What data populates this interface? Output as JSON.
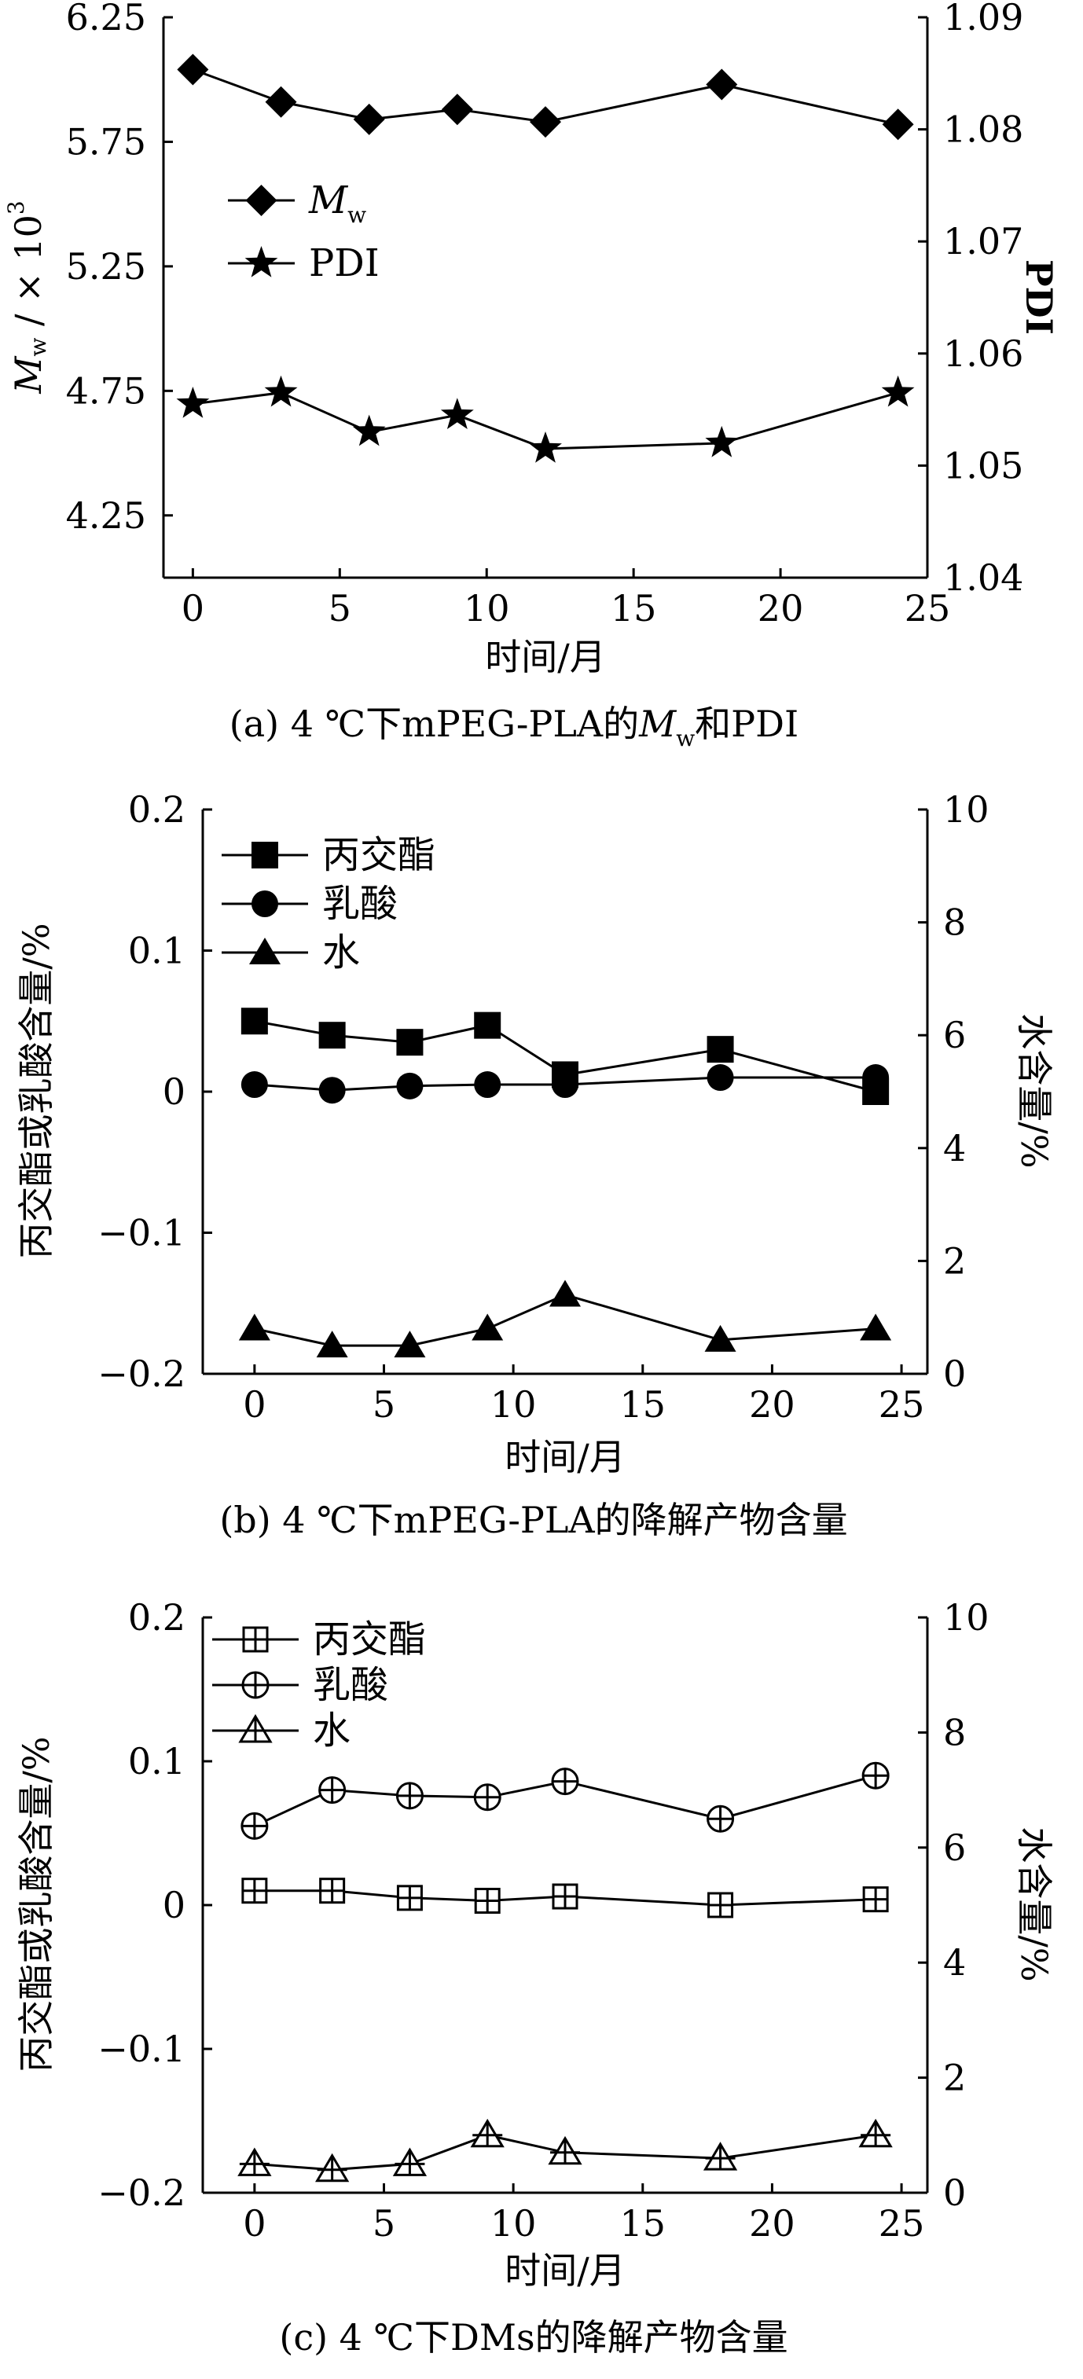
{
  "chart_data": [
    {
      "type": "line",
      "caption": "(a) 4 ℃下mPEG-PLA的M_w和PDI",
      "caption_parts": {
        "pre": "(a) 4 ℃下mPEG-PLA的",
        "var": "M",
        "sub": "w",
        "post": "和PDI"
      },
      "xlabel": "时间/月",
      "ylabel_left": "M_w / × 10^3",
      "ylabel_left_parts": {
        "var": "M",
        "sub": "w",
        "rest": " / × 10",
        "sup": "3"
      },
      "ylabel_right": "PDI",
      "xlim": [
        -1,
        25
      ],
      "ylim_left": [
        4.0,
        6.25
      ],
      "ylim_right": [
        1.04,
        1.09
      ],
      "xticks": [
        "0",
        "5",
        "10",
        "15",
        "20",
        "25"
      ],
      "yticks_left": [
        "4.25",
        "4.75",
        "5.25",
        "5.75",
        "6.25"
      ],
      "yticks_right": [
        "1.04",
        "1.05",
        "1.06",
        "1.07",
        "1.08",
        "1.09"
      ],
      "legend": "top-left",
      "series": [
        {
          "name": "M_w",
          "name_parts": {
            "var": "M",
            "sub": "w"
          },
          "axis": "left",
          "marker": "diamond",
          "x": [
            0,
            3,
            6,
            9,
            12,
            18,
            24
          ],
          "y": [
            6.04,
            5.91,
            5.84,
            5.88,
            5.83,
            5.98,
            5.82
          ]
        },
        {
          "name": "PDI",
          "axis": "right",
          "marker": "star",
          "x": [
            0,
            3,
            6,
            9,
            12,
            18,
            24
          ],
          "y": [
            1.0555,
            1.0565,
            1.053,
            1.0545,
            1.0515,
            1.052,
            1.0565
          ]
        }
      ]
    },
    {
      "type": "line",
      "caption": "(b) 4 ℃下mPEG-PLA的降解产物含量",
      "xlabel": "时间/月",
      "ylabel_left": "丙交酯或乳酸含量/%",
      "ylabel_right": "水含量/%",
      "xlim": [
        -2,
        26
      ],
      "ylim_left": [
        -0.2,
        0.2
      ],
      "ylim_right": [
        0,
        10
      ],
      "xticks": [
        "0",
        "5",
        "10",
        "15",
        "20",
        "25"
      ],
      "yticks_left": [
        "−0.2",
        "−0.1",
        "0",
        "0.1",
        "0.2"
      ],
      "yticks_right": [
        "0",
        "2",
        "4",
        "6",
        "8",
        "10"
      ],
      "legend": "top-left",
      "series": [
        {
          "name": "丙交酯",
          "axis": "left",
          "marker": "square-filled",
          "x": [
            0,
            3,
            6,
            9,
            12,
            18,
            24
          ],
          "y": [
            0.05,
            0.04,
            0.035,
            0.047,
            0.012,
            0.03,
            0.0
          ]
        },
        {
          "name": "乳酸",
          "axis": "left",
          "marker": "circle-filled",
          "x": [
            0,
            3,
            6,
            9,
            12,
            18,
            24
          ],
          "y": [
            0.005,
            0.001,
            0.004,
            0.005,
            0.005,
            0.01,
            0.01
          ]
        },
        {
          "name": "水",
          "axis": "right",
          "marker": "triangle-filled",
          "x": [
            0,
            3,
            6,
            9,
            12,
            18,
            24
          ],
          "y": [
            0.8,
            0.5,
            0.5,
            0.8,
            1.4,
            0.6,
            0.8
          ]
        }
      ]
    },
    {
      "type": "line",
      "caption": "(c) 4 ℃下DMs的降解产物含量",
      "xlabel": "时间/月",
      "ylabel_left": "丙交酯或乳酸含量/%",
      "ylabel_right": "水含量/%",
      "xlim": [
        -2,
        26
      ],
      "ylim_left": [
        -0.2,
        0.2
      ],
      "ylim_right": [
        0,
        10
      ],
      "xticks": [
        "0",
        "5",
        "10",
        "15",
        "20",
        "25"
      ],
      "yticks_left": [
        "−0.2",
        "−0.1",
        "0",
        "0.1",
        "0.2"
      ],
      "yticks_right": [
        "0",
        "2",
        "4",
        "6",
        "8",
        "10"
      ],
      "legend": "top-left",
      "series": [
        {
          "name": "丙交酯",
          "axis": "left",
          "marker": "square-cross",
          "x": [
            0,
            3,
            6,
            9,
            12,
            18,
            24
          ],
          "y": [
            0.01,
            0.01,
            0.005,
            0.003,
            0.006,
            0.0,
            0.004
          ]
        },
        {
          "name": "乳酸",
          "axis": "left",
          "marker": "circle-cross",
          "x": [
            0,
            3,
            6,
            9,
            12,
            18,
            24
          ],
          "y": [
            0.055,
            0.08,
            0.076,
            0.075,
            0.086,
            0.06,
            0.09
          ]
        },
        {
          "name": "水",
          "axis": "right",
          "marker": "triangle-cross",
          "x": [
            0,
            3,
            6,
            9,
            12,
            18,
            24
          ],
          "y": [
            0.5,
            0.4,
            0.5,
            1.0,
            0.7,
            0.6,
            1.0
          ]
        }
      ]
    }
  ]
}
